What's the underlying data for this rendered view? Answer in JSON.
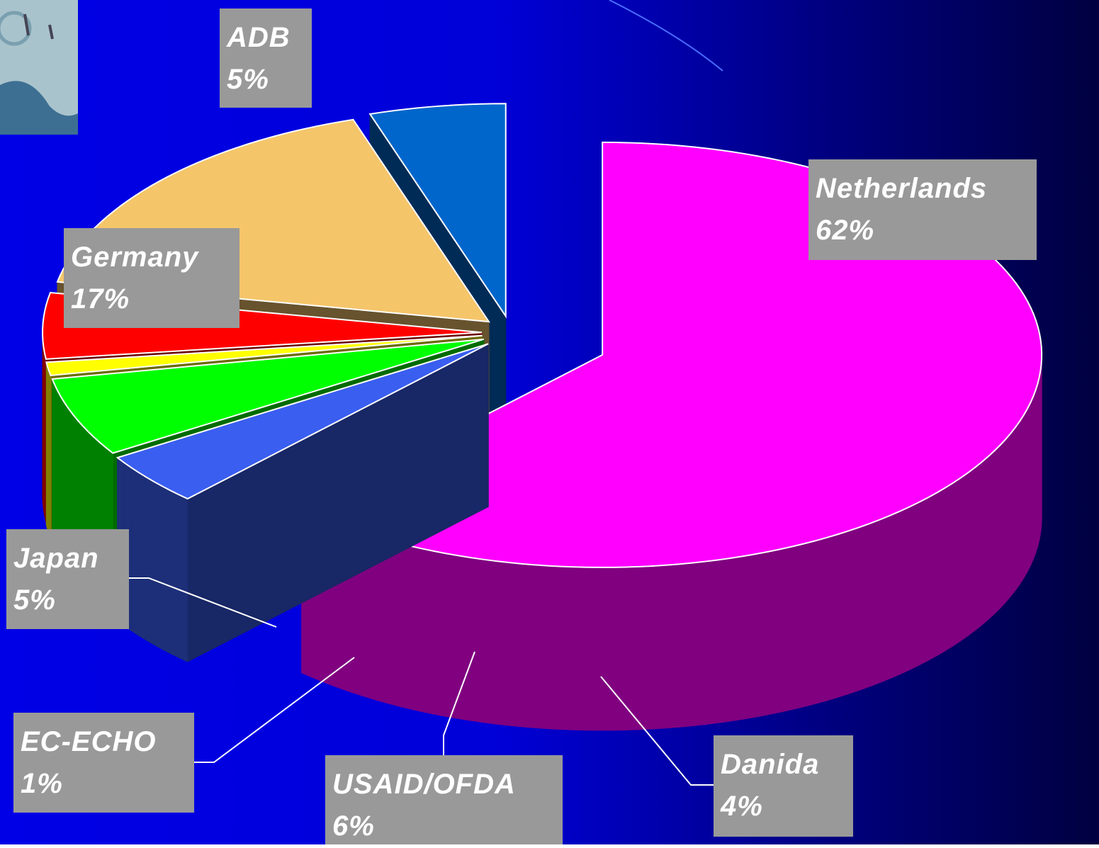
{
  "chart_data": {
    "type": "pie",
    "categories": [
      "Netherlands",
      "Danida",
      "USAID/OFDA",
      "EC-ECHO",
      "Japan",
      "Germany",
      "ADB"
    ],
    "values": [
      62,
      4,
      6,
      1,
      5,
      17,
      5
    ],
    "value_labels": [
      "62%",
      "4%",
      "6%",
      "1%",
      "5%",
      "17%",
      "5%"
    ],
    "colors": [
      "#ff00ff",
      "#3a5ef0",
      "#00ff00",
      "#ffff00",
      "#ff0000",
      "#f5c56a",
      "#0066cc"
    ],
    "three_d": true,
    "exploded": true
  }
}
